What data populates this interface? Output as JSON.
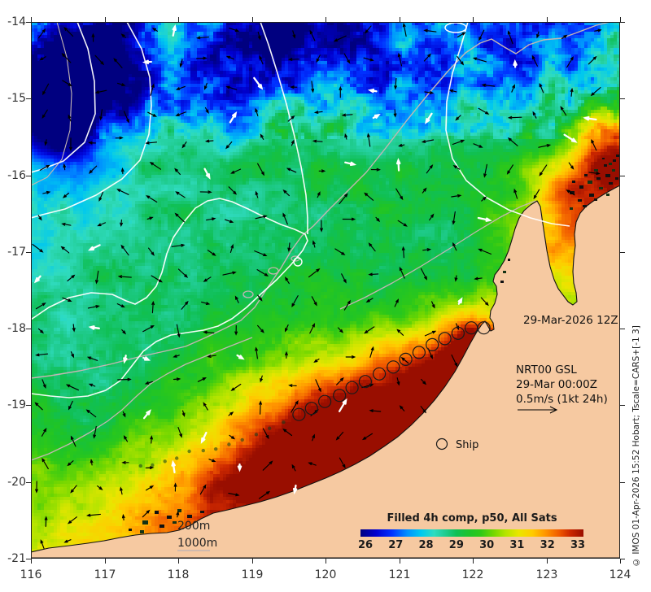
{
  "axes": {
    "lon_tick_labels": [
      "116",
      "117",
      "118",
      "119",
      "120",
      "121",
      "122",
      "123",
      "124"
    ],
    "lat_tick_labels": [
      "-14",
      "-15",
      "-16",
      "-17",
      "-18",
      "-19",
      "-20",
      "-21"
    ],
    "lon_range": [
      116,
      124
    ],
    "lat_range": [
      -14,
      -21
    ]
  },
  "annotations": {
    "datetime": "29-Mar-2026 12Z",
    "product": [
      "NRT00 GSL",
      "29-Mar 00:00Z",
      "0.5m/s (1kt 24h)"
    ],
    "ship_legend_label": "Ship",
    "depth_200": "200m",
    "depth_1000": "1000m",
    "copyright": "© IMOS 01-Apr-2026 15:52 Hobart; Tscale=CARS+[-1 3]"
  },
  "colorbar": {
    "title": "Filled 4h comp, p50, All Sats",
    "tick_labels": [
      "26",
      "27",
      "28",
      "29",
      "30",
      "31",
      "32",
      "33"
    ],
    "min": 26,
    "max": 33,
    "stops": [
      [
        0.0,
        "#000080"
      ],
      [
        0.07,
        "#0000d0"
      ],
      [
        0.14,
        "#0030ff"
      ],
      [
        0.21,
        "#0090ff"
      ],
      [
        0.27,
        "#00c8f0"
      ],
      [
        0.33,
        "#30dcc0"
      ],
      [
        0.38,
        "#20cc90"
      ],
      [
        0.43,
        "#10c055"
      ],
      [
        0.49,
        "#1ec42a"
      ],
      [
        0.54,
        "#2fc917"
      ],
      [
        0.6,
        "#77d800"
      ],
      [
        0.65,
        "#b4e400"
      ],
      [
        0.71,
        "#eae600"
      ],
      [
        0.77,
        "#ffcc00"
      ],
      [
        0.83,
        "#ff9400"
      ],
      [
        0.89,
        "#f05a00"
      ],
      [
        0.94,
        "#cc2800"
      ],
      [
        1.0,
        "#990e00"
      ]
    ]
  },
  "colors": {
    "land": "#f6c9a1",
    "coast": "#111111",
    "ssh_contour": "#ffffff",
    "bathy_contour": "#c4b6b2",
    "arrow_black": "#000000",
    "arrow_white": "#ffffff",
    "axis": "#222222"
  },
  "chart_data": {
    "type": "heatmap",
    "title": "Filled 4h comp, p50, All Sats",
    "variable": "sea surface temperature (°C)",
    "scale_range": [
      26,
      33
    ],
    "extent": {
      "lon_min": 116,
      "lon_max": 124,
      "lat_min": -21,
      "lat_max": -14
    },
    "overlays": [
      "SSH contours (white)",
      "200m/1000m bathymetry (grey)",
      "surface current vectors",
      "ship track"
    ],
    "velocity_scale": "0.5m/s (1kt 24h)",
    "ship_track": {
      "circles_lonlat": [
        [
          119.64,
          -19.12
        ],
        [
          119.81,
          -19.04
        ],
        [
          119.99,
          -18.95
        ],
        [
          120.19,
          -18.87
        ],
        [
          120.36,
          -18.77
        ],
        [
          120.54,
          -18.69
        ],
        [
          120.73,
          -18.59
        ],
        [
          120.92,
          -18.5
        ],
        [
          121.09,
          -18.4
        ],
        [
          121.27,
          -18.31
        ],
        [
          121.45,
          -18.21
        ],
        [
          121.62,
          -18.13
        ],
        [
          121.8,
          -18.06
        ],
        [
          121.98,
          -17.99
        ],
        [
          122.15,
          -17.99
        ]
      ],
      "dots_lonlat": [
        [
          117.49,
          -19.79
        ],
        [
          117.65,
          -19.78
        ],
        [
          117.82,
          -19.73
        ],
        [
          117.98,
          -19.69
        ],
        [
          118.15,
          -19.6
        ],
        [
          118.34,
          -19.59
        ],
        [
          118.51,
          -19.57
        ],
        [
          118.69,
          -19.51
        ],
        [
          118.87,
          -19.45
        ],
        [
          119.06,
          -19.38
        ],
        [
          119.24,
          -19.3
        ],
        [
          119.43,
          -19.22
        ]
      ]
    }
  }
}
